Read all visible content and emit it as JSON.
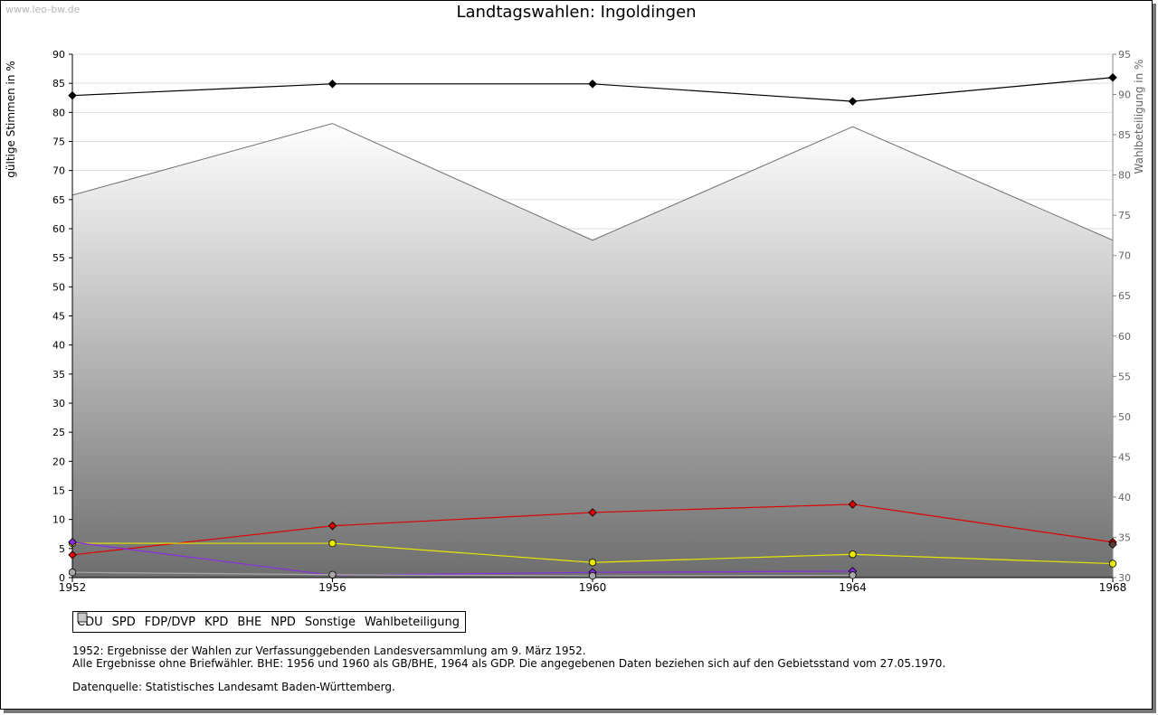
{
  "watermark": "www.leo-bw.de",
  "chart_data": {
    "type": "line",
    "title": "Landtagswahlen: Ingoldingen",
    "ylabel": "gültige Stimmen in %",
    "y2label": "Wahlbeteiligung in %",
    "x": [
      "1952",
      "1956",
      "1960",
      "1964",
      "1968"
    ],
    "ylim": [
      0,
      90
    ],
    "y2lim": [
      30,
      95
    ],
    "yticks": [
      "0",
      "5",
      "10",
      "15",
      "20",
      "25",
      "30",
      "35",
      "40",
      "45",
      "50",
      "55",
      "60",
      "65",
      "70",
      "75",
      "80",
      "85",
      "90"
    ],
    "y2ticks": [
      "30",
      "35",
      "40",
      "45",
      "50",
      "55",
      "60",
      "65",
      "70",
      "75",
      "80",
      "85",
      "90",
      "95"
    ],
    "grid": true,
    "series": [
      {
        "name": "CDU",
        "color": "#000000",
        "marker": "diamond",
        "values": [
          82.9,
          84.9,
          84.9,
          81.9,
          86.0
        ]
      },
      {
        "name": "SPD",
        "color": "#e00000",
        "marker": "diamond",
        "values": [
          3.9,
          8.9,
          11.2,
          12.6,
          6.1
        ]
      },
      {
        "name": "FDP/DVP",
        "color": "#e8e800",
        "marker": "circle",
        "values": [
          5.9,
          5.9,
          2.6,
          4.0,
          2.4
        ]
      },
      {
        "name": "KPD",
        "color": "#e00000",
        "marker": "diamond",
        "values": [
          null,
          null,
          null,
          null,
          null
        ]
      },
      {
        "name": "BHE",
        "color": "#8a2be2",
        "marker": "diamond",
        "values": [
          6.1,
          0.4,
          0.9,
          1.1,
          null
        ]
      },
      {
        "name": "NPD",
        "color": "#5c4033",
        "marker": "diamond",
        "values": [
          null,
          null,
          null,
          null,
          5.7
        ]
      },
      {
        "name": "Sonstige",
        "color": "#a8a8a8",
        "marker": "circle",
        "values": [
          0.9,
          0.5,
          0.3,
          0.4,
          null
        ]
      }
    ],
    "area_series": {
      "name": "Wahlbeteiligung",
      "axis": "right",
      "values": [
        77.5,
        86.4,
        71.9,
        86.0,
        71.9
      ]
    }
  },
  "notes": [
    "1952: Ergebnisse der Wahlen zur Verfassunggebenden Landesversammlung am 9. März 1952.",
    "Alle Ergebnisse ohne Briefwähler. BHE: 1956 und 1960 als GB/BHE, 1964 als GDP. Die angegebenen Daten beziehen sich auf den Gebietsstand vom 27.05.1970."
  ],
  "source": "Datenquelle: Statistisches Landesamt Baden-Württemberg."
}
